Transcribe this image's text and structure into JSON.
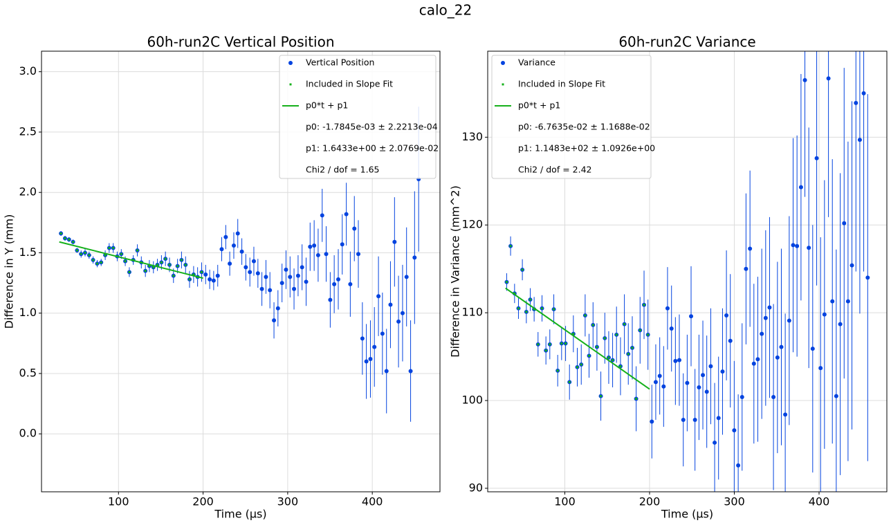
{
  "title": "calo_22",
  "chart_data": [
    {
      "type": "errorbar",
      "title": "60h-run2C Vertical Position",
      "xlabel": "Time (µs)",
      "ylabel": "Difference in Y (mm)",
      "xlim": [
        9,
        480
      ],
      "ylim": [
        -0.48,
        3.17
      ],
      "xticks": [
        100,
        200,
        300,
        400
      ],
      "yticks": [
        {
          "value": 0,
          "label": "0.0"
        },
        0.5,
        {
          "value": 1,
          "label": "1.0"
        },
        1.5,
        {
          "value": 2,
          "label": "2.0"
        },
        2.5,
        {
          "value": 3,
          "label": "3.0"
        }
      ],
      "grid": true,
      "legend_loc": "upper right",
      "series": [
        {
          "name": "Vertical Position",
          "color": "#0343df",
          "x": [
            32,
            36.8,
            41.5,
            46.3,
            51,
            55.8,
            60.5,
            65.3,
            70,
            74.8,
            79.5,
            84.3,
            89,
            93.8,
            98.5,
            103.3,
            108,
            112.8,
            117.5,
            122.3,
            127,
            131.8,
            136.5,
            141.3,
            146,
            150.8,
            155.5,
            160.3,
            165,
            169.8,
            174.5,
            179.3,
            184,
            188.8,
            193.5,
            198.3,
            203,
            207.8,
            212.5,
            217.3,
            222,
            226.8,
            231.5,
            236.3,
            241,
            245.8,
            250.5,
            255.3,
            260,
            264.8,
            269.5,
            274.3,
            279,
            283.8,
            288.5,
            293.3,
            298,
            302.8,
            307.5,
            312.3,
            317,
            321.8,
            326.5,
            331.3,
            336,
            340.8,
            345.5,
            350.3,
            355,
            359.8,
            364.5,
            369.3,
            374,
            378.8,
            383.5,
            388.3,
            393,
            397.8,
            402.5,
            407.3,
            412,
            416.8,
            421.5,
            426.3,
            431,
            435.8,
            440.5,
            445.3,
            450,
            454.8
          ],
          "values": [
            1.66,
            1.62,
            1.61,
            1.59,
            1.52,
            1.49,
            1.5,
            1.48,
            1.44,
            1.41,
            1.42,
            1.48,
            1.54,
            1.54,
            1.47,
            1.49,
            1.43,
            1.34,
            1.44,
            1.52,
            1.42,
            1.35,
            1.39,
            1.38,
            1.4,
            1.42,
            1.45,
            1.4,
            1.31,
            1.39,
            1.44,
            1.4,
            1.28,
            1.32,
            1.3,
            1.34,
            1.32,
            1.28,
            1.27,
            1.31,
            1.53,
            1.63,
            1.41,
            1.56,
            1.66,
            1.51,
            1.38,
            1.34,
            1.43,
            1.33,
            1.2,
            1.3,
            1.19,
            0.94,
            1.04,
            1.25,
            1.36,
            1.3,
            1.2,
            1.31,
            1.38,
            1.26,
            1.55,
            1.56,
            1.48,
            1.81,
            1.49,
            1.11,
            1.24,
            1.28,
            1.57,
            1.82,
            1.24,
            1.7,
            1.49,
            0.79,
            0.6,
            0.62,
            0.72,
            1.14,
            0.83,
            0.52,
            1.07,
            1.59,
            0.93,
            1,
            1.3,
            0.52,
            1.46,
            2.11
          ],
          "errors": [
            0.02,
            0.02,
            0.02,
            0.02,
            0.02,
            0.03,
            0.03,
            0.03,
            0.03,
            0.03,
            0.03,
            0.04,
            0.04,
            0.04,
            0.04,
            0.04,
            0.04,
            0.04,
            0.04,
            0.05,
            0.05,
            0.05,
            0.05,
            0.05,
            0.05,
            0.06,
            0.06,
            0.06,
            0.06,
            0.06,
            0.07,
            0.07,
            0.07,
            0.07,
            0.08,
            0.08,
            0.08,
            0.08,
            0.08,
            0.09,
            0.1,
            0.1,
            0.1,
            0.11,
            0.12,
            0.11,
            0.11,
            0.12,
            0.12,
            0.12,
            0.14,
            0.14,
            0.15,
            0.15,
            0.15,
            0.16,
            0.16,
            0.17,
            0.17,
            0.17,
            0.19,
            0.2,
            0.2,
            0.21,
            0.22,
            0.22,
            0.23,
            0.23,
            0.24,
            0.25,
            0.25,
            0.26,
            0.27,
            0.27,
            0.28,
            0.3,
            0.31,
            0.32,
            0.33,
            0.33,
            0.34,
            0.35,
            0.36,
            0.37,
            0.38,
            0.4,
            0.41,
            0.42,
            0.55,
            0.6
          ]
        }
      ],
      "fit_points": {
        "name": "Included in Slope Fit",
        "color": "#15b01a",
        "x_range": [
          30,
          200
        ]
      },
      "fit": {
        "name": "p0*t + p1",
        "color": "#15b01a",
        "x": [
          30,
          200
        ],
        "y": [
          1.59,
          1.29
        ]
      },
      "fit_stats": [
        "p0: -1.7845e-03 ± 2.2213e-04",
        "p1: 1.6433e+00 ± 2.0769e-02",
        "Chi2 / dof = 1.65"
      ]
    },
    {
      "type": "errorbar",
      "title": "60h-run2C Variance",
      "xlabel": "Time (µs)",
      "ylabel": "Difference in Variance (mm^2)",
      "xlim": [
        9,
        480
      ],
      "ylim": [
        89.6,
        139.8
      ],
      "xticks": [
        100,
        200,
        300,
        400
      ],
      "yticks": [
        90,
        100,
        110,
        120,
        130
      ],
      "grid": true,
      "legend_loc": "upper left",
      "series": [
        {
          "name": "Variance",
          "color": "#0343df",
          "x": [
            31.4,
            36.0,
            40.7,
            45.3,
            49.9,
            54.6,
            59.2,
            63.8,
            68.4,
            73.1,
            77.7,
            82.3,
            87.0,
            91.6,
            96.2,
            100.9,
            105.5,
            110.1,
            114.7,
            119.4,
            124.0,
            128.6,
            133.3,
            137.9,
            142.5,
            147.2,
            151.8,
            156.4,
            161.0,
            165.7,
            170.3,
            174.9,
            179.6,
            184.2,
            188.8,
            193.5,
            198.1,
            202.7,
            207.3,
            212.0,
            216.6,
            221.2,
            225.9,
            230.5,
            235.1,
            239.8,
            244.4,
            249.0,
            253.6,
            258.3,
            262.9,
            267.5,
            272.2,
            276.8,
            281.4,
            286.1,
            290.7,
            295.3,
            299.9,
            304.6,
            309.2,
            313.8,
            318.5,
            323.1,
            327.7,
            332.4,
            337.0,
            341.6,
            346.2,
            350.9,
            355.5,
            360.1,
            364.8,
            369.4,
            374.0,
            378.7,
            383.3,
            387.9,
            392.5,
            397.2,
            401.8,
            406.4,
            411.1,
            415.7,
            420.3,
            425.0,
            429.6,
            434.2,
            438.8,
            443.5,
            448.1,
            452.7,
            457.4
          ],
          "values": [
            113.5,
            117.6,
            112.2,
            110.5,
            114.9,
            110.1,
            111.5,
            110.4,
            106.4,
            110.5,
            105.7,
            106.4,
            110.4,
            103.4,
            106.5,
            106.5,
            102.1,
            107.6,
            103.8,
            104.1,
            109.7,
            105.1,
            108.6,
            106.1,
            100.5,
            107.1,
            104.9,
            104.6,
            107.5,
            103.9,
            108.7,
            105.3,
            106,
            100.2,
            108,
            110.9,
            107.5,
            97.6,
            102.1,
            102.8,
            101.6,
            110.5,
            108.2,
            104.5,
            104.6,
            97.8,
            102,
            109.6,
            97.8,
            101.5,
            102.9,
            101,
            103.9,
            95.2,
            98,
            103.3,
            109.7,
            106.8,
            96.6,
            92.6,
            100.4,
            115,
            117.3,
            104.2,
            104.7,
            107.6,
            109.4,
            110.6,
            100.4,
            104.9,
            106.1,
            98.4,
            109.1,
            117.7,
            117.6,
            124.3,
            136.5,
            117.4,
            105.9,
            127.6,
            103.7,
            109.8,
            136.7,
            111.3,
            100.5,
            108.7,
            120.2,
            111.3,
            115.4,
            133.9,
            129.7,
            135,
            114
          ],
          "errors": [
            1,
            1.1,
            1.1,
            1.2,
            1.2,
            1.3,
            1.3,
            1.4,
            1.4,
            1.5,
            1.6,
            1.7,
            1.7,
            1.8,
            1.9,
            2,
            2,
            2.1,
            2.2,
            2.3,
            2.4,
            2.5,
            2.6,
            2.7,
            2.8,
            2.9,
            3,
            3.1,
            3.2,
            3.3,
            3.4,
            3.5,
            3.6,
            3.7,
            3.8,
            3.9,
            4,
            4.2,
            4.3,
            4.4,
            4.6,
            4.7,
            4.9,
            5,
            5.2,
            5.3,
            5.5,
            5.7,
            5.8,
            6,
            6.2,
            6.4,
            6.6,
            6.8,
            7,
            7.2,
            7.4,
            7.6,
            7.9,
            8.1,
            8.4,
            8.6,
            8.9,
            9.1,
            9.4,
            9.7,
            10,
            10.3,
            10.6,
            10.9,
            11.2,
            11.5,
            11.9,
            12.2,
            12.6,
            12.9,
            13.3,
            13.7,
            14.1,
            14.5,
            14.9,
            15.3,
            15.8,
            16.2,
            16.7,
            17.2,
            17.7,
            18.2,
            18.7,
            19.2,
            19.8,
            20.3,
            20.9
          ]
        }
      ],
      "fit_points": {
        "name": "Included in Slope Fit",
        "color": "#15b01a",
        "x_range": [
          30,
          200
        ]
      },
      "fit": {
        "name": "p0*t + p1",
        "color": "#15b01a",
        "x": [
          30,
          200
        ],
        "y": [
          112.8,
          101.3
        ]
      },
      "fit_stats": [
        "p0: -6.7635e-02 ± 1.1688e-02",
        "p1: 1.1483e+02 ± 1.0926e+00",
        "Chi2 / dof = 2.42"
      ]
    }
  ]
}
